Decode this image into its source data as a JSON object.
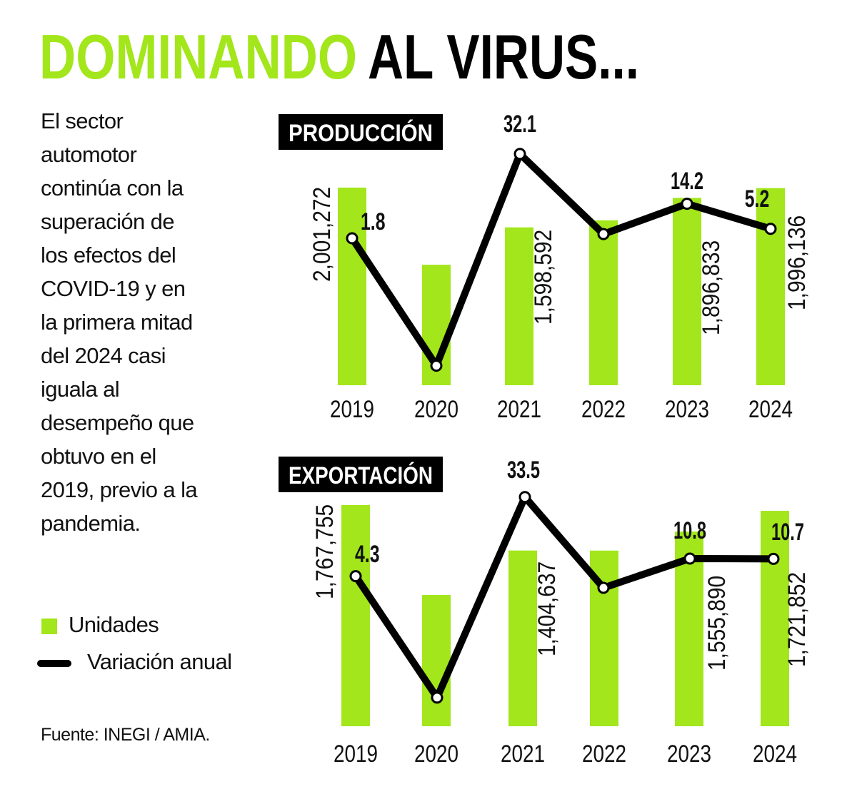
{
  "title": {
    "highlight": "DOMINANDO",
    "rest": "AL VIRUS..."
  },
  "intro_lines": [
    "El sector",
    "automotor",
    "continúa con la",
    "superación de",
    "los efectos del",
    "COVID-19 y en",
    "la primera mitad",
    "del 2024 casi",
    "iguala al",
    "desempeño que",
    "obtuvo en el",
    "2019, previo a la",
    "pandemia."
  ],
  "legend": {
    "bars": "Unidades",
    "line": "Variación anual"
  },
  "source": "Fuente: INEGI / AMIA.",
  "colors": {
    "bar": "#a2e61b",
    "line": "#000000",
    "title_green": "#a2e61b",
    "text": "#111111"
  },
  "chart_data": [
    {
      "type": "bar",
      "title": "PRODUCCIÓN",
      "categories": [
        "2019",
        "2020",
        "2021",
        "2022",
        "2023",
        "2024"
      ],
      "series": [
        {
          "name": "Unidades",
          "type": "bar",
          "values": [
            2001272,
            1220000,
            1598592,
            1670000,
            1896833,
            1996136
          ],
          "labels": [
            "2,001,272",
            null,
            "1,598,592",
            null,
            "1,896,833",
            "1,996,136"
          ]
        },
        {
          "name": "Variación anual",
          "type": "line",
          "values": [
            1.8,
            -44,
            32.1,
            3.3,
            14.2,
            5.2
          ],
          "labels": [
            "1.8",
            null,
            "32.1",
            null,
            "14.2",
            "5.2"
          ]
        }
      ],
      "note": "Unlabeled values estimated from the graphic"
    },
    {
      "type": "bar",
      "title": "EXPORTACIÓN",
      "categories": [
        "2019",
        "2020",
        "2021",
        "2022",
        "2023",
        "2024"
      ],
      "series": [
        {
          "name": "Unidades",
          "type": "bar",
          "values": [
            1767755,
            1049000,
            1404637,
            1404000,
            1555890,
            1721852
          ],
          "labels": [
            "1,767,755",
            null,
            "1,404,637",
            null,
            "1,555,890",
            "1,721,852"
          ]
        },
        {
          "name": "Variación anual",
          "type": "line",
          "values": [
            4.3,
            -40.5,
            33.5,
            0,
            10.8,
            10.7
          ],
          "labels": [
            "4.3",
            null,
            "33.5",
            null,
            "10.8",
            "10.7"
          ]
        }
      ],
      "note": "Unlabeled values estimated from the graphic"
    }
  ]
}
